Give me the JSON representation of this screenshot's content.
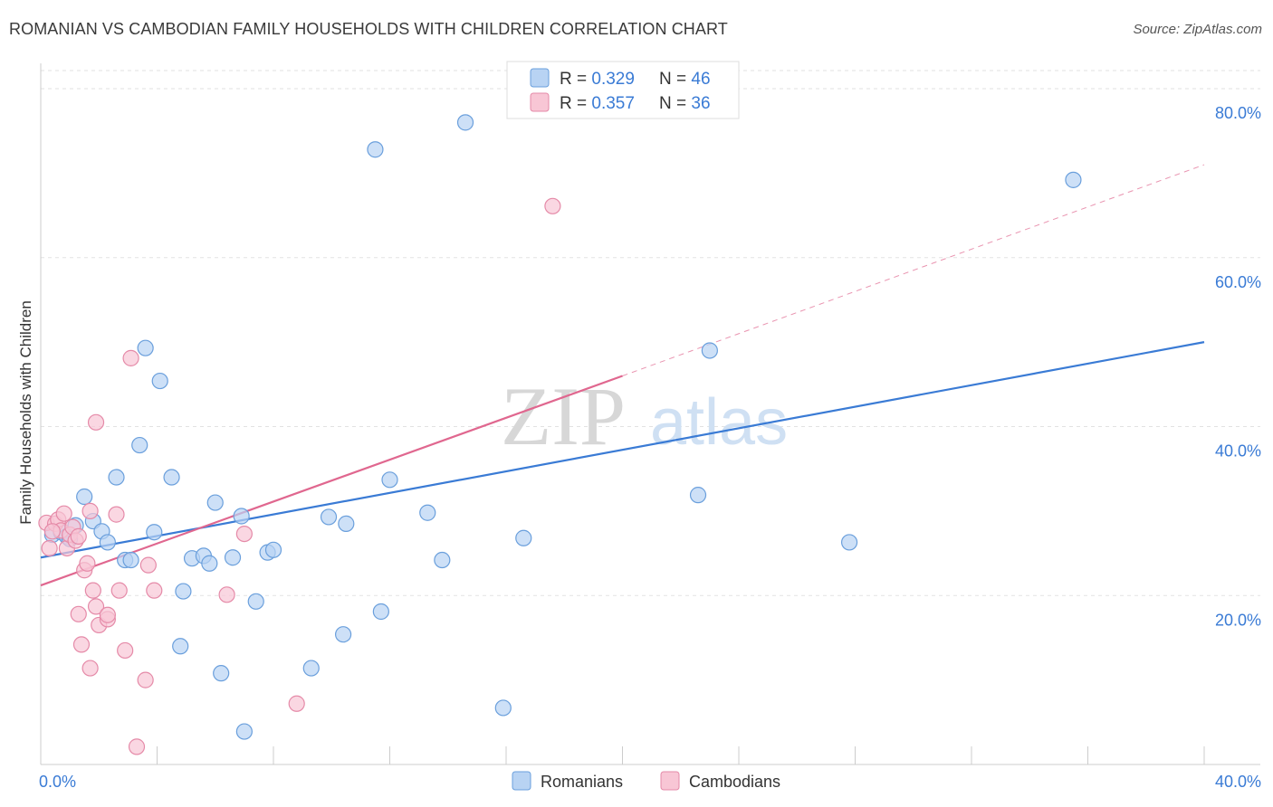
{
  "title": "ROMANIAN VS CAMBODIAN FAMILY HOUSEHOLDS WITH CHILDREN CORRELATION CHART",
  "source": "Source: ZipAtlas.com",
  "watermark": {
    "zip": "ZIP",
    "atlas": "atlas"
  },
  "colors": {
    "romanians_fill": "#b8d3f3",
    "romanians_stroke": "#6a9fdc",
    "romanians_line": "#3a7bd5",
    "cambodians_fill": "#f8c6d5",
    "cambodians_stroke": "#e58aa8",
    "cambodians_line": "#e0678f",
    "value_text": "#3a7bd5",
    "grid": "#e2e2e2"
  },
  "legend": [
    {
      "r_label": "R = ",
      "r_value": "0.329",
      "n_label": "N = ",
      "n_value": "46"
    },
    {
      "r_label": "R = ",
      "r_value": "0.357",
      "n_label": "N = ",
      "n_value": "36"
    }
  ],
  "bottom_legend": [
    "Romanians",
    "Cambodians"
  ],
  "chart_data": {
    "type": "scatter",
    "title": "ROMANIAN VS CAMBODIAN FAMILY HOUSEHOLDS WITH CHILDREN CORRELATION CHART",
    "xlabel": "",
    "ylabel": "Family Households with Children",
    "xlim": [
      0,
      40
    ],
    "ylim": [
      0,
      83
    ],
    "x_tick_labels": [
      {
        "value": 0,
        "label": "0.0%"
      },
      {
        "value": 40,
        "label": "40.0%"
      }
    ],
    "y_tick_labels": [
      {
        "value": 20,
        "label": "20.0%"
      },
      {
        "value": 40,
        "label": "40.0%"
      },
      {
        "value": 60,
        "label": "60.0%"
      },
      {
        "value": 80,
        "label": "80.0%"
      }
    ],
    "x_minor_ticks": [
      4,
      8,
      12,
      16,
      20,
      24,
      28,
      32,
      36,
      40
    ],
    "series": [
      {
        "name": "Romanians",
        "r": 0.329,
        "n": 46,
        "trend": {
          "x0": 0,
          "y0": 24.5,
          "x1": 40,
          "y1": 50.0
        },
        "points": [
          [
            0.4,
            27.2
          ],
          [
            0.7,
            27.5
          ],
          [
            0.9,
            27.0
          ],
          [
            1.0,
            26.7
          ],
          [
            1.2,
            28.3
          ],
          [
            1.5,
            31.7
          ],
          [
            1.8,
            28.8
          ],
          [
            2.1,
            27.6
          ],
          [
            2.3,
            26.3
          ],
          [
            2.6,
            34.0
          ],
          [
            2.9,
            24.2
          ],
          [
            3.1,
            24.2
          ],
          [
            3.4,
            37.8
          ],
          [
            3.6,
            49.3
          ],
          [
            3.9,
            27.5
          ],
          [
            4.1,
            45.4
          ],
          [
            4.5,
            34.0
          ],
          [
            4.8,
            14.0
          ],
          [
            4.9,
            20.5
          ],
          [
            5.2,
            24.4
          ],
          [
            5.6,
            24.7
          ],
          [
            5.8,
            23.8
          ],
          [
            6.0,
            31.0
          ],
          [
            6.2,
            10.8
          ],
          [
            6.6,
            24.5
          ],
          [
            6.9,
            29.4
          ],
          [
            7.0,
            3.9
          ],
          [
            7.4,
            19.3
          ],
          [
            7.8,
            25.1
          ],
          [
            8.0,
            25.4
          ],
          [
            9.3,
            11.4
          ],
          [
            9.9,
            29.3
          ],
          [
            10.4,
            15.4
          ],
          [
            10.5,
            28.5
          ],
          [
            11.5,
            72.8
          ],
          [
            11.7,
            18.1
          ],
          [
            12.0,
            33.7
          ],
          [
            13.3,
            29.8
          ],
          [
            13.8,
            24.2
          ],
          [
            14.6,
            76.0
          ],
          [
            15.9,
            6.7
          ],
          [
            16.6,
            26.8
          ],
          [
            22.6,
            31.9
          ],
          [
            23.0,
            49.0
          ],
          [
            27.8,
            26.3
          ],
          [
            35.5,
            69.2
          ]
        ]
      },
      {
        "name": "Cambodians",
        "r": 0.357,
        "n": 36,
        "trend": {
          "x0": 0,
          "y0": 21.2,
          "x1": 20,
          "y1": 46.0
        },
        "trend_extension": {
          "x0": 20,
          "y0": 46.0,
          "x1": 40,
          "y1": 71.0
        },
        "points": [
          [
            0.2,
            28.6
          ],
          [
            0.3,
            25.6
          ],
          [
            0.5,
            28.5
          ],
          [
            0.6,
            29.0
          ],
          [
            0.7,
            27.7
          ],
          [
            0.9,
            25.6
          ],
          [
            1.0,
            27.2
          ],
          [
            1.1,
            28.1
          ],
          [
            1.2,
            26.5
          ],
          [
            1.5,
            23.0
          ],
          [
            1.3,
            17.8
          ],
          [
            1.4,
            14.2
          ],
          [
            1.6,
            23.8
          ],
          [
            1.7,
            11.4
          ],
          [
            1.8,
            20.6
          ],
          [
            1.9,
            18.7
          ],
          [
            0.8,
            29.7
          ],
          [
            1.7,
            30.0
          ],
          [
            2.0,
            16.5
          ],
          [
            2.3,
            17.2
          ],
          [
            2.3,
            17.7
          ],
          [
            2.6,
            29.6
          ],
          [
            2.7,
            20.6
          ],
          [
            2.9,
            13.5
          ],
          [
            3.1,
            48.1
          ],
          [
            3.3,
            2.1
          ],
          [
            3.6,
            10.0
          ],
          [
            3.7,
            23.6
          ],
          [
            3.9,
            20.6
          ],
          [
            1.9,
            40.5
          ],
          [
            6.4,
            20.1
          ],
          [
            7.0,
            27.3
          ],
          [
            8.8,
            7.2
          ],
          [
            17.6,
            66.1
          ],
          [
            1.3,
            27.0
          ],
          [
            0.4,
            27.6
          ]
        ]
      }
    ]
  }
}
